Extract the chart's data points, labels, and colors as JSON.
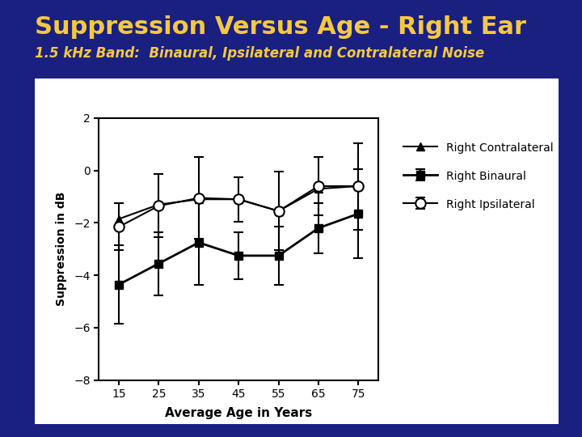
{
  "title": "Suppression Versus Age - Right Ear",
  "subtitle": "1.5 kHz Band:  Binaural, Ipsilateral and Contralateral Noise",
  "title_color": "#F5C842",
  "subtitle_color": "#F5C842",
  "background_color": "#1a2080",
  "plot_bg_color": "#ffffff",
  "white_box_color": "#ffffff",
  "xlabel": "Average Age in Years",
  "ylabel": "Suppression in dB",
  "x": [
    15,
    25,
    35,
    45,
    55,
    65,
    75
  ],
  "binaural_y": [
    -4.35,
    -3.55,
    -2.75,
    -3.25,
    -3.25,
    -2.2,
    -1.65
  ],
  "binaural_yerr": [
    1.5,
    1.2,
    1.6,
    0.9,
    1.1,
    0.95,
    1.7
  ],
  "ipsilateral_y": [
    -2.15,
    -1.35,
    -1.05,
    -1.1,
    -1.55,
    -0.6,
    -0.6
  ],
  "ipsilateral_yerr": [
    0.9,
    1.2,
    1.55,
    0.85,
    1.5,
    1.1,
    1.65
  ],
  "contralateral_y": [
    -1.85,
    -1.3,
    -1.1,
    -1.1,
    -1.55,
    -0.7,
    -0.6
  ],
  "ylim": [
    -8,
    2
  ],
  "yticks": [
    -8,
    -6,
    -4,
    -2,
    0,
    2
  ],
  "xlim": [
    10,
    80
  ],
  "xticks": [
    15,
    25,
    35,
    45,
    55,
    65,
    75
  ],
  "legend_labels": [
    "Right Binaural",
    "Right Ipsilateral",
    "Right Contralateral"
  ]
}
